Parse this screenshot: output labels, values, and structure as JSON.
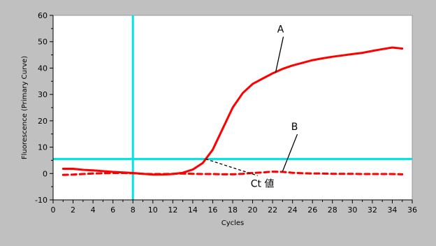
{
  "chart_data": {
    "type": "line",
    "title": "",
    "xlabel": "Cycles",
    "ylabel": "Fluorescence (Primary Curve)",
    "xlim": [
      0,
      36
    ],
    "ylim": [
      -10,
      60
    ],
    "x_ticks": [
      "0",
      "2",
      "4",
      "6",
      "8",
      "10",
      "12",
      "14",
      "16",
      "18",
      "20",
      "22",
      "24",
      "26",
      "28",
      "30",
      "32",
      "34",
      "36"
    ],
    "y_ticks": [
      "-10",
      "0",
      "10",
      "20",
      "30",
      "40",
      "50",
      "60"
    ],
    "grid": false,
    "legend": "none",
    "series": [
      {
        "name": "A",
        "style": "solid",
        "color": "#ff0000",
        "points": [
          [
            1,
            1.8
          ],
          [
            2,
            1.8
          ],
          [
            3,
            1.4
          ],
          [
            4,
            1.2
          ],
          [
            5,
            0.9
          ],
          [
            6,
            0.6
          ],
          [
            7,
            0.4
          ],
          [
            8,
            0.2
          ],
          [
            9,
            -0.1
          ],
          [
            10,
            -0.4
          ],
          [
            11,
            -0.4
          ],
          [
            12,
            -0.2
          ],
          [
            13,
            0.3
          ],
          [
            14,
            1.5
          ],
          [
            15,
            4
          ],
          [
            16,
            9
          ],
          [
            17,
            17
          ],
          [
            18,
            25
          ],
          [
            19,
            30.5
          ],
          [
            20,
            34
          ],
          [
            21,
            36
          ],
          [
            22,
            38
          ],
          [
            23,
            39.7
          ],
          [
            24,
            41
          ],
          [
            25,
            42
          ],
          [
            26,
            43
          ],
          [
            27,
            43.7
          ],
          [
            28,
            44.3
          ],
          [
            29,
            44.8
          ],
          [
            30,
            45.3
          ],
          [
            31,
            45.8
          ],
          [
            32,
            46.5
          ],
          [
            33,
            47.2
          ],
          [
            34,
            47.8
          ],
          [
            35,
            47.4
          ]
        ]
      },
      {
        "name": "B",
        "style": "dashed",
        "color": "#ff0000",
        "points": [
          [
            1,
            -0.5
          ],
          [
            2,
            -0.4
          ],
          [
            3,
            -0.2
          ],
          [
            4,
            0
          ],
          [
            5,
            0.1
          ],
          [
            6,
            0.2
          ],
          [
            7,
            0.2
          ],
          [
            8,
            0.1
          ],
          [
            9,
            -0.1
          ],
          [
            10,
            -0.2
          ],
          [
            11,
            -0.2
          ],
          [
            12,
            -0.1
          ],
          [
            13,
            0
          ],
          [
            14,
            -0.1
          ],
          [
            15,
            -0.2
          ],
          [
            16,
            -0.2
          ],
          [
            17,
            -0.3
          ],
          [
            18,
            -0.3
          ],
          [
            19,
            -0.1
          ],
          [
            20,
            0.2
          ],
          [
            21,
            0.4
          ],
          [
            22,
            0.7
          ],
          [
            23,
            0.6
          ],
          [
            24,
            0.3
          ],
          [
            25,
            0.1
          ],
          [
            26,
            0
          ],
          [
            27,
            0
          ],
          [
            28,
            -0.1
          ],
          [
            29,
            -0.1
          ],
          [
            30,
            -0.1
          ],
          [
            31,
            -0.2
          ],
          [
            32,
            -0.2
          ],
          [
            33,
            -0.2
          ],
          [
            34,
            -0.2
          ],
          [
            35,
            -0.3
          ]
        ]
      }
    ],
    "threshold_line": {
      "y": 5.5,
      "color": "#00e5e5"
    },
    "vertical_line": {
      "x": 8,
      "color": "#00e5e5"
    },
    "annotations": [
      {
        "text": "A",
        "x": 22.8,
        "y": 53.5,
        "arrow_to": [
          22.3,
          38.3
        ]
      },
      {
        "text": "B",
        "x": 24.2,
        "y": 16.5,
        "arrow_to": [
          23,
          0.8
        ]
      },
      {
        "text": "Ct 値",
        "x": 19.8,
        "y": -4,
        "arrow_from": [
          15.3,
          5.5
        ]
      }
    ]
  }
}
